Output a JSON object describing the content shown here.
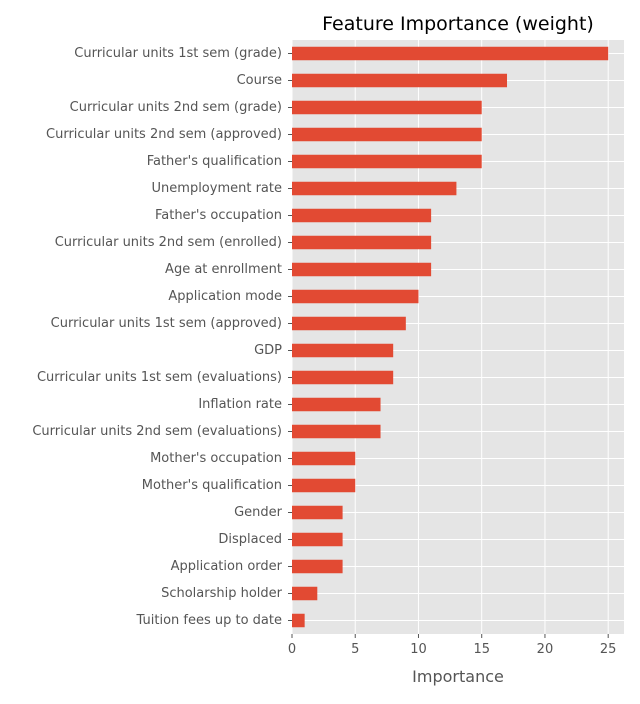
{
  "chart_data": {
    "type": "bar",
    "orientation": "horizontal",
    "title": "Feature Importance (weight)",
    "xlabel": "Importance",
    "ylabel": "",
    "xlim": [
      0,
      26.25
    ],
    "xticks": [
      0,
      5,
      10,
      15,
      20,
      25
    ],
    "grid": true,
    "legend": "none",
    "bar_color": "#e24a33",
    "background_color": "#e5e5e5",
    "grid_color": "#ffffff",
    "categories": [
      "Curricular units 1st sem (grade)",
      "Course",
      "Curricular units 2nd sem (grade)",
      "Curricular units 2nd sem (approved)",
      "Father's qualification",
      "Unemployment rate",
      "Father's occupation",
      "Curricular units 2nd sem (enrolled)",
      "Age at enrollment",
      "Application mode",
      "Curricular units 1st sem (approved)",
      "GDP",
      "Curricular units 1st sem (evaluations)",
      "Inflation rate",
      "Curricular units 2nd sem (evaluations)",
      "Mother's occupation",
      "Mother's qualification",
      "Gender",
      "Displaced",
      "Application order",
      "Scholarship holder",
      "Tuition fees up to date"
    ],
    "values": [
      25,
      17,
      15,
      15,
      15,
      13,
      11,
      11,
      11,
      10,
      9,
      8,
      8,
      7,
      7,
      5,
      5,
      4,
      4,
      4,
      2,
      1
    ]
  }
}
